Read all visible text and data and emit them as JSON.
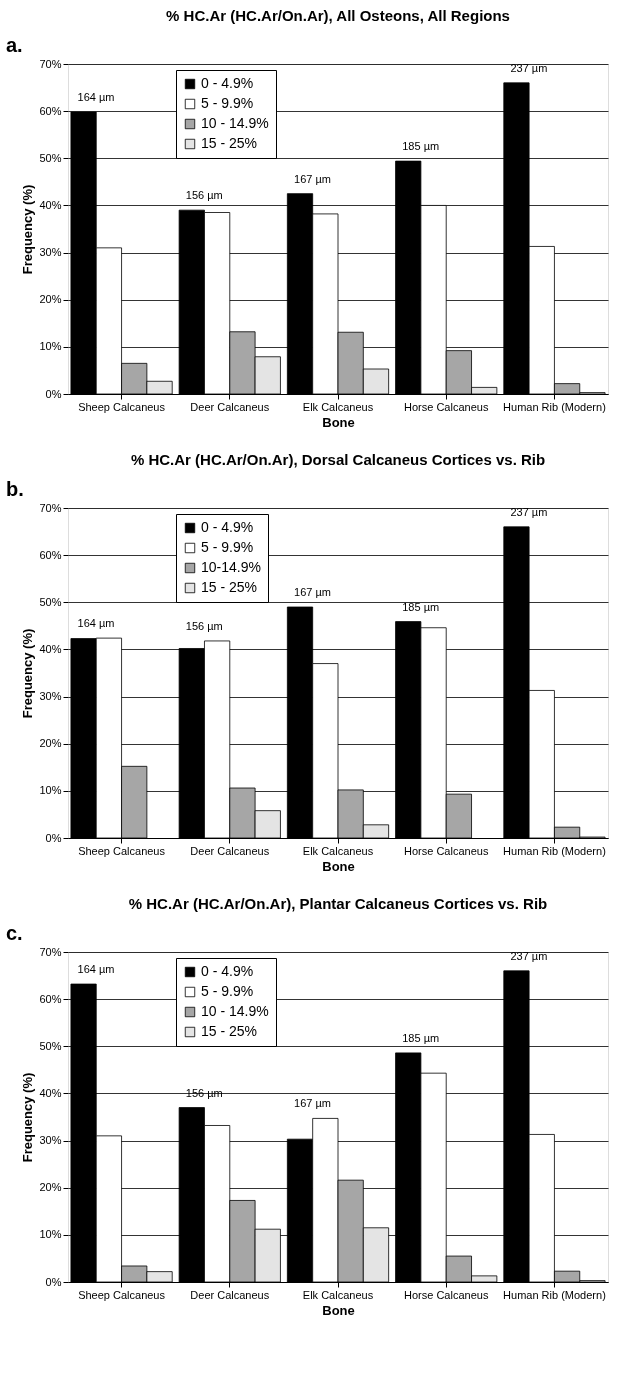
{
  "chart_data": [
    {
      "type": "bar",
      "title": "% HC.Ar (HC.Ar/On.Ar), All Osteons, All Regions",
      "xlabel": "Bone",
      "ylabel": "Frequency (%)",
      "categories": [
        "Sheep Calcaneus",
        "Deer Calcaneus",
        "Elk Calcaneus",
        "Horse Calcaneus",
        "Human Rib (Modern)"
      ],
      "series": [
        {
          "name": "0 - 4.9%",
          "color": "#000000",
          "values": [
            59.8,
            39.0,
            42.5,
            49.4,
            66.0
          ]
        },
        {
          "name": "5 - 9.9%",
          "color": "#ffffff",
          "values": [
            31.0,
            38.5,
            38.2,
            40.0,
            31.3
          ]
        },
        {
          "name": "10 - 14.9%",
          "color": "#a6a6a6",
          "values": [
            6.5,
            13.2,
            13.1,
            9.2,
            2.2
          ]
        },
        {
          "name": "15 - 25%",
          "color": "#e4e4e4",
          "values": [
            2.7,
            7.9,
            5.3,
            1.4,
            0.3
          ]
        }
      ],
      "ylim": [
        0,
        70
      ],
      "yticks": [
        {
          "value": 0,
          "label": "0%"
        },
        {
          "value": 10,
          "label": "10%"
        },
        {
          "value": 20,
          "label": "20%"
        },
        {
          "value": 30,
          "label": "30%"
        },
        {
          "value": 40,
          "label": "40%"
        },
        {
          "value": 50,
          "label": "50%"
        },
        {
          "value": 60,
          "label": "60%"
        },
        {
          "value": 70,
          "label": "70%"
        }
      ],
      "grid": "y",
      "legend": "top left",
      "annotations": [
        "a.",
        "164 µm",
        "156 µm",
        "167 µm",
        "185 µm",
        "237 µm"
      ]
    },
    {
      "type": "bar",
      "title": "% HC.Ar (HC.Ar/On.Ar), Dorsal Calcaneus Cortices vs. Rib",
      "xlabel": "Bone",
      "ylabel": "Frequency (%)",
      "categories": [
        "Sheep Calcaneus",
        "Deer Calcaneus",
        "Elk Calcaneus",
        "Horse Calcaneus",
        "Human Rib (Modern)"
      ],
      "series": [
        {
          "name": "0 - 4.9%",
          "color": "#000000",
          "values": [
            42.3,
            40.2,
            49.0,
            45.9,
            66.0
          ]
        },
        {
          "name": "5 - 9.9%",
          "color": "#ffffff",
          "values": [
            42.4,
            41.8,
            37.0,
            44.6,
            31.3
          ]
        },
        {
          "name": "10-14.9%",
          "color": "#a6a6a6",
          "values": [
            15.2,
            10.6,
            10.2,
            9.3,
            2.3
          ]
        },
        {
          "name": "15 - 25%",
          "color": "#e4e4e4",
          "values": [
            0,
            5.8,
            2.8,
            0,
            0.2
          ]
        }
      ],
      "ylim": [
        0,
        70
      ],
      "yticks": [
        {
          "value": 0,
          "label": "0%"
        },
        {
          "value": 10,
          "label": "10%"
        },
        {
          "value": 20,
          "label": "20%"
        },
        {
          "value": 30,
          "label": "30%"
        },
        {
          "value": 40,
          "label": "40%"
        },
        {
          "value": 50,
          "label": "50%"
        },
        {
          "value": 60,
          "label": "60%"
        },
        {
          "value": 70,
          "label": "70%"
        }
      ],
      "grid": "y",
      "legend": "top left",
      "annotations": [
        "b.",
        "164 µm",
        "156 µm",
        "167 µm",
        "185 µm",
        "237 µm"
      ]
    },
    {
      "type": "bar",
      "title": "% HC.Ar (HC.Ar/On.Ar), Plantar Calcaneus Cortices vs. Rib",
      "xlabel": "Bone",
      "ylabel": "Frequency (%)",
      "categories": [
        "Sheep Calcaneus",
        "Deer Calcaneus",
        "Elk Calcaneus",
        "Horse Calcaneus",
        "Human Rib (Modern)"
      ],
      "series": [
        {
          "name": "0 - 4.9%",
          "color": "#000000",
          "values": [
            63.2,
            37.0,
            30.3,
            48.6,
            66.0
          ]
        },
        {
          "name": "5 - 9.9%",
          "color": "#ffffff",
          "values": [
            31.0,
            33.2,
            34.7,
            44.3,
            31.3
          ]
        },
        {
          "name": "10 - 14.9%",
          "color": "#a6a6a6",
          "values": [
            3.4,
            17.3,
            21.6,
            5.5,
            2.3
          ]
        },
        {
          "name": "15 - 25%",
          "color": "#e4e4e4",
          "values": [
            2.2,
            11.2,
            11.5,
            1.3,
            0.3
          ]
        }
      ],
      "ylim": [
        0,
        70
      ],
      "yticks": [
        {
          "value": 0,
          "label": "0%"
        },
        {
          "value": 10,
          "label": "10%"
        },
        {
          "value": 20,
          "label": "20%"
        },
        {
          "value": 30,
          "label": "30%"
        },
        {
          "value": 40,
          "label": "40%"
        },
        {
          "value": 50,
          "label": "50%"
        },
        {
          "value": 60,
          "label": "60%"
        },
        {
          "value": 70,
          "label": "70%"
        }
      ],
      "grid": "y",
      "legend": "top left",
      "annotations": [
        "c.",
        "164 µm",
        "156 µm",
        "167 µm",
        "185 µm",
        "237 µm"
      ]
    }
  ]
}
